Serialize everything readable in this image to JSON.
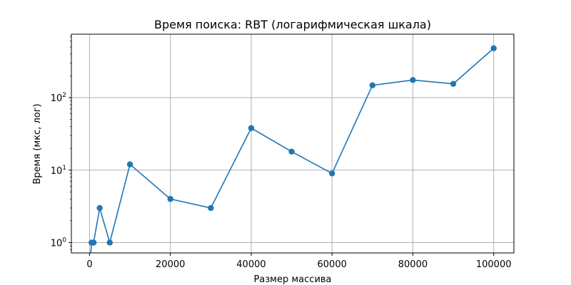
{
  "chart_data": {
    "type": "line",
    "title": "Время поиска: RBT (логарифмическая шкала)",
    "xlabel": "Размер массива",
    "ylabel": "Время (мкс, лог)",
    "yscale": "log",
    "grid": true,
    "xlim": [
      -4500,
      105000
    ],
    "ylim": [
      0.72,
      750
    ],
    "x_ticks": [
      {
        "value": 0,
        "label": "0"
      },
      {
        "value": 20000,
        "label": "20000"
      },
      {
        "value": 40000,
        "label": "40000"
      },
      {
        "value": 60000,
        "label": "60000"
      },
      {
        "value": 80000,
        "label": "80000"
      },
      {
        "value": 100000,
        "label": "100000"
      }
    ],
    "y_ticks": [
      {
        "value": 1,
        "base": "10",
        "exp": "0"
      },
      {
        "value": 10,
        "base": "10",
        "exp": "1"
      },
      {
        "value": 100,
        "base": "10",
        "exp": "2"
      }
    ],
    "x": [
      100,
      500,
      1000,
      2500,
      5000,
      10000,
      20000,
      30000,
      40000,
      50000,
      60000,
      70000,
      80000,
      90000,
      100000
    ],
    "series": [
      {
        "values": [
          0.5,
          1,
          1,
          3,
          1,
          12,
          4,
          3,
          38,
          18,
          9,
          148,
          175,
          155,
          480
        ],
        "color": "#1f77b4"
      }
    ]
  }
}
